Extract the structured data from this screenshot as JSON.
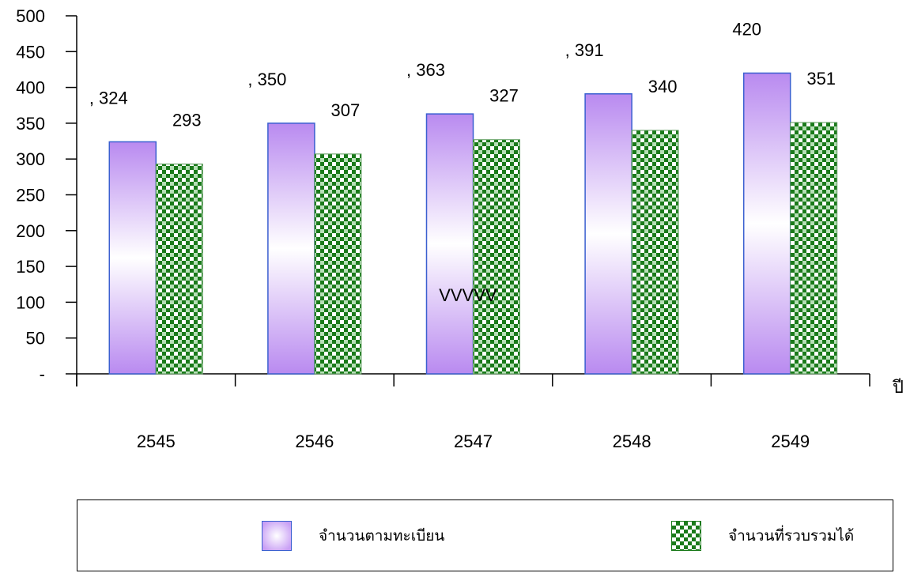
{
  "chart_data": {
    "type": "bar",
    "categories": [
      "2545",
      "2546",
      "2547",
      "2548",
      "2549"
    ],
    "series": [
      {
        "name": "จำนวนตามทะเบียน",
        "values": [
          324,
          350,
          363,
          391,
          420
        ],
        "labels": [
          ", 324",
          ", 350",
          ", 363",
          ", 391",
          "420"
        ],
        "color": "#c9a0f5"
      },
      {
        "name": "จำนวนที่รวบรวมได้",
        "values": [
          293,
          307,
          327,
          340,
          351
        ],
        "labels": [
          "293",
          "307",
          "327",
          "340",
          "351"
        ],
        "color": "#1a7a1a"
      }
    ],
    "ylim": [
      0,
      500
    ],
    "yticks": [
      "-",
      "50",
      "100",
      "150",
      "200",
      "250",
      "300",
      "350",
      "400",
      "450",
      "500"
    ],
    "xlabel": "ปี",
    "annotation": "VVVVV",
    "legend_position": "bottom",
    "grid": false
  }
}
